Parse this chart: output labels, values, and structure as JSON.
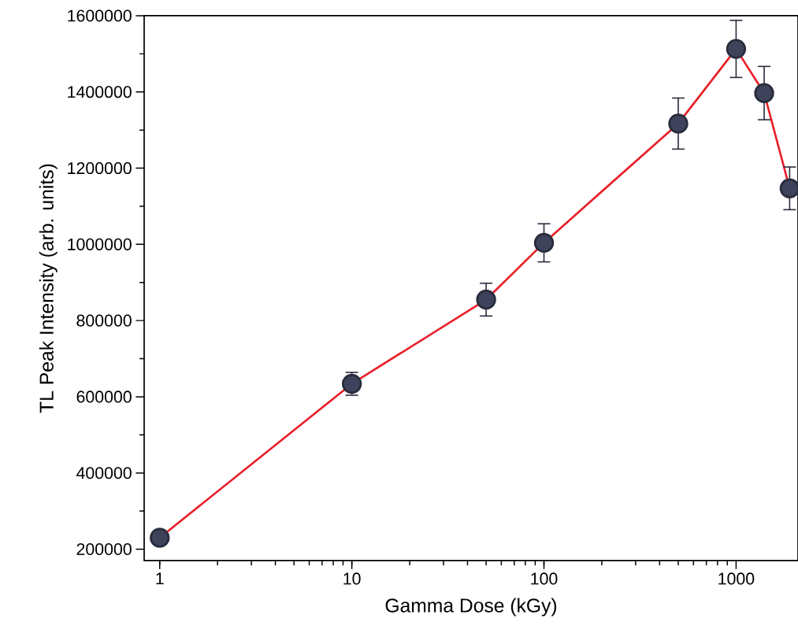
{
  "chart_data": {
    "type": "line",
    "xlabel": "Gamma Dose (kGy)",
    "ylabel": "TL Peak Intensity (arb. units)",
    "log": "x",
    "x": [
      1,
      10,
      50,
      100,
      500,
      1000,
      1400,
      1900
    ],
    "series": [
      {
        "color": "#e8202a",
        "values": [
          230000,
          634000,
          855000,
          1004000,
          1317000,
          1513000,
          1397000,
          1147000
        ],
        "errors": [
          null,
          30000,
          43000,
          50000,
          67000,
          75000,
          70000,
          56000
        ]
      }
    ],
    "marker": "circle",
    "line_style": "solid",
    "xlim": [
      0.83,
      2100
    ],
    "xticks": [
      1,
      10,
      100,
      1000
    ],
    "ylim": [
      170000,
      1600000
    ],
    "yticks": [
      200000,
      400000,
      600000,
      800000,
      1000000,
      1200000,
      1400000,
      1600000
    ]
  }
}
